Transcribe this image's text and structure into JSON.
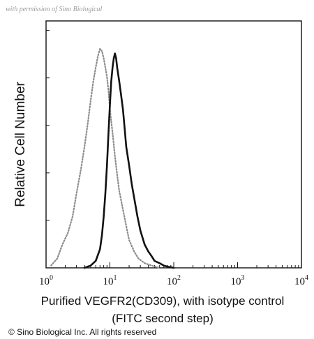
{
  "watermark": "with permission of Sino Biological",
  "copyright": "© Sino Biological Inc. All rights reserved",
  "chart_data": {
    "type": "line",
    "title": "",
    "ylabel": "Relative Cell Number",
    "xlabel_lines": [
      "Purified VEGFR2(CD309), with isotype control",
      "(FITC second step)"
    ],
    "xscale": "log",
    "xlim": [
      1,
      10000
    ],
    "ylim": [
      0,
      1
    ],
    "grid": false,
    "legend": "none",
    "x_ticks": [
      {
        "value": 1,
        "base": "10",
        "exp": "0"
      },
      {
        "value": 10,
        "base": "10",
        "exp": "1"
      },
      {
        "value": 100,
        "base": "10",
        "exp": "2"
      },
      {
        "value": 1000,
        "base": "10",
        "exp": "3"
      },
      {
        "value": 10000,
        "base": "10",
        "exp": "4"
      }
    ],
    "series": [
      {
        "style": "dotted-grey",
        "color": "#8c8c8c",
        "x": [
          1.2,
          1.5,
          1.8,
          2.2,
          2.6,
          3.0,
          3.5,
          4.0,
          4.5,
          5.0,
          5.5,
          6.0,
          6.5,
          7.0,
          7.5,
          8.0,
          8.5,
          9.0,
          9.5,
          10.0,
          11.0,
          12.0,
          13.0,
          14.0,
          16.0,
          18.0,
          20.0,
          24.0,
          28.0,
          35.0,
          45.0,
          60.0
        ],
        "y": [
          0.01,
          0.04,
          0.1,
          0.15,
          0.22,
          0.32,
          0.42,
          0.52,
          0.62,
          0.72,
          0.8,
          0.86,
          0.91,
          0.94,
          0.93,
          0.9,
          0.86,
          0.82,
          0.76,
          0.68,
          0.58,
          0.48,
          0.4,
          0.33,
          0.25,
          0.18,
          0.12,
          0.07,
          0.04,
          0.02,
          0.01,
          0.0
        ]
      },
      {
        "style": "solid-black",
        "color": "#111111",
        "x": [
          4.0,
          5.0,
          6.0,
          7.0,
          7.5,
          8.0,
          8.5,
          9.0,
          9.5,
          10.0,
          10.5,
          11.0,
          11.5,
          12.0,
          12.5,
          13.0,
          14.0,
          15.0,
          16.0,
          17.0,
          18.0,
          20.0,
          22.0,
          24.0,
          27.0,
          30.0,
          35.0,
          40.0,
          45.0,
          50.0,
          60.0,
          70.0,
          80.0,
          100.0
        ],
        "y": [
          0.0,
          0.01,
          0.03,
          0.08,
          0.14,
          0.22,
          0.32,
          0.44,
          0.58,
          0.7,
          0.8,
          0.86,
          0.9,
          0.92,
          0.9,
          0.86,
          0.8,
          0.74,
          0.68,
          0.6,
          0.52,
          0.44,
          0.36,
          0.3,
          0.22,
          0.16,
          0.1,
          0.07,
          0.05,
          0.03,
          0.02,
          0.01,
          0.005,
          0.0
        ]
      }
    ]
  }
}
